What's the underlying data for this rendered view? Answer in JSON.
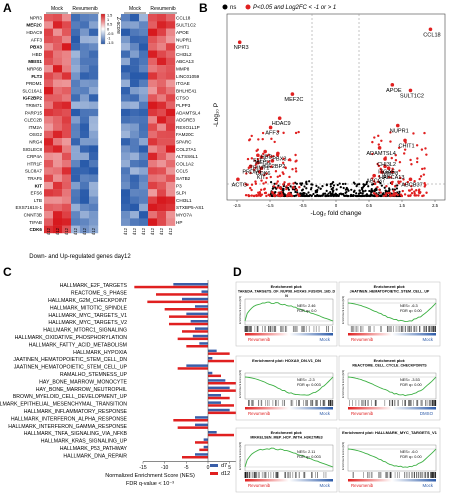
{
  "panel_labels": {
    "a": "A",
    "b": "B",
    "c": "C",
    "d": "D"
  },
  "heatmap": {
    "groups": [
      "Mock",
      "Revumenib"
    ],
    "samples": [
      "d12",
      "d12",
      "d12",
      "d12",
      "d12",
      "d12"
    ],
    "colorbar_label": "Z-score",
    "colorbar_ticks": [
      "1.5",
      "1",
      "0.5",
      "0",
      "-0.5",
      "-1",
      "-1.5"
    ],
    "left_genes": [
      {
        "name": "NPR3",
        "bold": false
      },
      {
        "name": "MEF2C",
        "bold": true
      },
      {
        "name": "HDAC9",
        "bold": false
      },
      {
        "name": "AFF3",
        "bold": false
      },
      {
        "name": "PBX3",
        "bold": true
      },
      {
        "name": "HBD",
        "bold": false
      },
      {
        "name": "MEIS1",
        "bold": true
      },
      {
        "name": "NRP6B",
        "bold": false
      },
      {
        "name": "FLT3",
        "bold": true
      },
      {
        "name": "PRDM1",
        "bold": false
      },
      {
        "name": "SLC16A1",
        "bold": false
      },
      {
        "name": "IGF2BP2",
        "bold": true
      },
      {
        "name": "TRIM71",
        "bold": false
      },
      {
        "name": "PARP15",
        "bold": false
      },
      {
        "name": "CLEC2B",
        "bold": false
      },
      {
        "name": "ITM2A",
        "bold": false
      },
      {
        "name": "OSG2",
        "bold": false
      },
      {
        "name": "NRG4",
        "bold": false
      },
      {
        "name": "SIGLEC8",
        "bold": false
      },
      {
        "name": "CRP4A",
        "bold": false
      },
      {
        "name": "HTR1F",
        "bold": false
      },
      {
        "name": "SLC8A7",
        "bold": false
      },
      {
        "name": "TRAF5",
        "bold": false
      },
      {
        "name": "KIT",
        "bold": true
      },
      {
        "name": "EFS6",
        "bold": false
      },
      {
        "name": "LTB",
        "bold": false
      },
      {
        "name": "EXS7161S-1",
        "bold": false
      },
      {
        "name": "CNNT3B",
        "bold": false
      },
      {
        "name": "TIFAB",
        "bold": false
      },
      {
        "name": "CDK6",
        "bold": true
      }
    ],
    "right_genes": [
      "CCL18",
      "SULT1C2",
      "APOE",
      "NUPR1",
      "CHIT1",
      "CHI3L2",
      "ABCA13",
      "MMP8",
      "LINC01059",
      "ITGAE",
      "BHLHE41",
      "CTSO",
      "PLPP3",
      "ADAMTSL4",
      "ADGRE3",
      "REXO1L1P",
      "FAM20C",
      "SPARC",
      "COL27A1",
      "ALTSS6L1",
      "COL1A2",
      "CCL5",
      "SATB2",
      "P3",
      "SLPI",
      "CHI3L1",
      "STXBP5-AS1",
      "MYO7A",
      "HP"
    ],
    "caption": "Down- and Up-regulated genes day12"
  },
  "volcano": {
    "legend_ns": "ns",
    "legend_sig": "P<0.05 and Log2FC < -1 or > 1",
    "ylabel": "-Log₁₀ P",
    "xlabel": "-Log₂ fold change",
    "xticks": [
      "-2.5",
      "-1.5",
      "-0.5",
      "0",
      "0.5",
      "1.5",
      "2.5"
    ],
    "labels": [
      {
        "text": "CCL18",
        "lfc": 2.6,
        "p": 90
      },
      {
        "text": "NPR3",
        "lfc": -2.65,
        "p": 83
      },
      {
        "text": "APOE",
        "lfc": 1.55,
        "p": 60
      },
      {
        "text": "SULT1C2",
        "lfc": 2.05,
        "p": 57
      },
      {
        "text": "MEF2C",
        "lfc": -1.2,
        "p": 55
      },
      {
        "text": "HDAC9",
        "lfc": -1.55,
        "p": 42
      },
      {
        "text": "AFF3",
        "lfc": -1.8,
        "p": 37
      },
      {
        "text": "NUPR1",
        "lfc": 1.7,
        "p": 38
      },
      {
        "text": "CHIT1",
        "lfc": 1.9,
        "p": 30
      },
      {
        "text": "ADAMTSL4",
        "lfc": 1.2,
        "p": 26
      },
      {
        "text": "HBD",
        "lfc": -1.95,
        "p": 24
      },
      {
        "text": "PBX3",
        "lfc": -1.6,
        "p": 23
      },
      {
        "text": "CHI3L2",
        "lfc": 1.35,
        "p": 20
      },
      {
        "text": "FLT3",
        "lfc": -2.15,
        "p": 22
      },
      {
        "text": "MEIS1",
        "lfc": -2.05,
        "p": 21
      },
      {
        "text": "IGF2BP2",
        "lfc": -1.75,
        "p": 19
      },
      {
        "text": "TRIM71",
        "lfc": -2.15,
        "p": 18
      },
      {
        "text": "PRDM1",
        "lfc": -2.35,
        "p": 16
      },
      {
        "text": "CDK6",
        "lfc": -2.05,
        "p": 15
      },
      {
        "text": "KIT",
        "lfc": -2.1,
        "p": 13
      },
      {
        "text": "ITGAE",
        "lfc": 1.35,
        "p": 16
      },
      {
        "text": "HP",
        "lfc": 1.25,
        "p": 13
      },
      {
        "text": "MMP8",
        "lfc": 1.45,
        "p": 15
      },
      {
        "text": "ABCA13",
        "lfc": 1.55,
        "p": 13
      },
      {
        "text": "ABCG7",
        "lfc": 1.05,
        "p": 11
      },
      {
        "text": "ACTG",
        "lfc": -2.7,
        "p": 9
      },
      {
        "text": "ABCB37",
        "lfc": 2.05,
        "p": 9
      }
    ]
  },
  "chart_data": {
    "type": "bar",
    "title": "",
    "xlabel": "Normalized Enrichment Score (NES)",
    "xlabel2": "FDR q-value < 10⁻³",
    "xticks": [
      "-15",
      "-10",
      "-5",
      "0",
      "5",
      "10"
    ],
    "xlim": [
      -18,
      12
    ],
    "categories": [
      "HALLMARK_E2F_TARGETS",
      "REACTOME_S_PHASE",
      "HALLMARK_G2M_CHECKPOINT",
      "HALLMARK_MITOTIC_SPINDLE",
      "HALLMARK_MYC_TARGETS_V1",
      "HALLMARK_MYC_TARGETS_V2",
      "HALLMARK_MTORC1_SIGNALING",
      "HALLMARK_OXIDATIVE_PHOSPHORYLATION",
      "HALLMARK_FATTY_ACID_METABOLISM",
      "HALLMARK_HYPOXIA",
      "JAATINEN_HEMATOPOIETIC_STEM_CELL_DN",
      "JAATINEN_HEMATOPOIETIC_STEM_CELL_UP",
      "RAMALHO_STEMNESS_UP",
      "HAY_BONE_MARROW_MONOCYTE",
      "HAY_BONE_MARROW_NEUTROPHIL",
      "BROWN_MYELOID_CELL_DEVELOPMENT_UP",
      "HALLMARK_EPITHELIAL_MESENCHYMAL_TRANSITION",
      "HALLMARK_INFLAMMATORY_RESPONSE",
      "HALLMARK_INTERFERON_ALPHA_RESPONSE",
      "HALLMARK_INTERFERON_GAMMA_RESPONSE",
      "HALLMARK_TNFA_SIGNALING_VIA_NFKB",
      "HALLMARK_KRAS_SIGNALING_UP",
      "HALLMARK_P53_PATHWAY",
      "HALLMARK_DNA_REPAIR"
    ],
    "series": [
      {
        "name": "d7",
        "values": [
          -8,
          -1.5,
          -6,
          -3,
          -5,
          -4,
          -3,
          -3.5,
          -2,
          2,
          1,
          -5,
          1,
          4,
          5,
          3,
          3,
          5,
          -3,
          -3,
          2,
          -1,
          -1,
          -3
        ]
      },
      {
        "name": "d12",
        "values": [
          -17,
          -12,
          -14,
          -10,
          -9,
          -9,
          -6,
          -7,
          -5,
          5,
          6,
          -7,
          3,
          7,
          7,
          5,
          6,
          8,
          -8,
          -7,
          6,
          -3,
          -2,
          -6
        ]
      }
    ],
    "colors": {
      "d7": "#3a5ea8",
      "d12": "#e02020"
    },
    "legend": "bottom-right"
  },
  "gsea": [
    {
      "title_line1": "Enrichment plot:",
      "title_line2": "TAKEDA_TARGETS_OF_NUP98_HOXA9_FUSION_16D_D",
      "title_line3": "N",
      "nes": "NES= 2.46",
      "fdr": "FDR q= 0.0",
      "left": "Revumenib",
      "right": "Mock",
      "peak": "up"
    },
    {
      "title_line1": "Enrichment plot:",
      "title_line2": "JAATINEN_HEMATOPOIETIC_STEM_CELL_UP",
      "title_line3": "",
      "nes": "NES= -6.3",
      "fdr": "FDR q= 0.00",
      "left": "Revumenib",
      "right": "Mock",
      "peak": "down"
    },
    {
      "title_line1": "Enrichment plot: HOXA9_DN.V1_DN",
      "title_line2": "",
      "title_line3": "",
      "nes": "NES= -2.3",
      "fdr": "FDR q= 0.003",
      "left": "Revumenib",
      "right": "Mock",
      "peak": "down"
    },
    {
      "title_line1": "Enrichment plot:",
      "title_line2": "REACTOME_CELL_CYCLE_CHECKPOINTS",
      "title_line3": "",
      "nes": "NES= -3.53",
      "fdr": "FDR q= 0.00",
      "left": "Revumenib",
      "right": "DMSO",
      "peak": "down"
    },
    {
      "title_line1": "Enrichment plot:",
      "title_line2": "MIKKELSEN_MEP_HCP_WITH_H3K27ME3",
      "title_line3": "",
      "nes": "NES= 2.11",
      "fdr": "FDR q= 0.003",
      "left": "Revumenib",
      "right": "Mock",
      "peak": "up"
    },
    {
      "title_line1": "Enrichment plot: HALLMARK_MYC_TARGETS_V1",
      "title_line2": "",
      "title_line3": "",
      "nes": "NES= -6.0",
      "fdr": "FDR q= 0.00",
      "left": "Revumenib",
      "right": "Mock",
      "peak": "down"
    }
  ],
  "gsea_ylabel": "Enrichment score (ES)"
}
